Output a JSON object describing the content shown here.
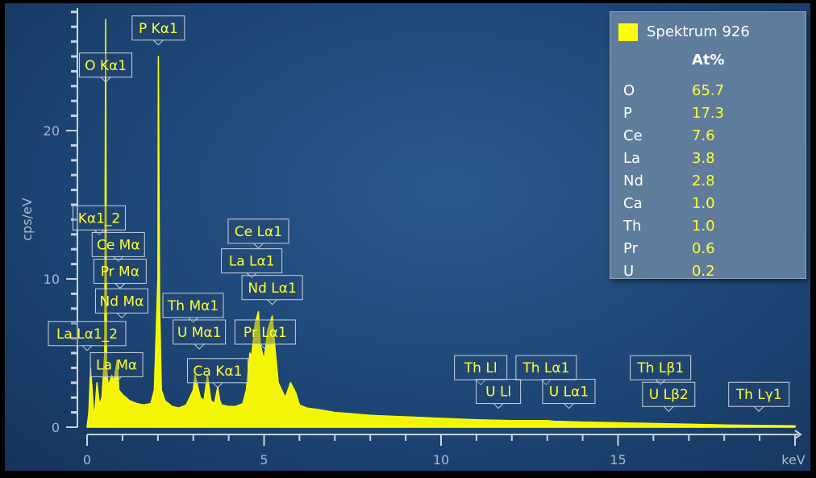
{
  "chart_data": {
    "type": "area",
    "x_range": [
      0,
      20
    ],
    "y_range": [
      0,
      28
    ],
    "y_axis_label": "cps/eV",
    "x_axis_unit": "keV",
    "x_tick_labels": [
      "0",
      "5",
      "10",
      "15"
    ],
    "y_tick_labels": [
      "0",
      "10",
      "20"
    ],
    "series_color": "#ffff00",
    "spectrum": {
      "x": [
        0,
        0.05,
        0.1,
        0.2,
        0.28,
        0.35,
        0.42,
        0.5,
        0.525,
        0.55,
        0.6,
        0.7,
        0.75,
        0.85,
        0.9,
        1.0,
        1.1,
        1.2,
        1.4,
        1.6,
        1.8,
        1.9,
        2.0,
        2.013,
        2.05,
        2.1,
        2.2,
        2.4,
        2.6,
        2.8,
        3.0,
        3.05,
        3.1,
        3.2,
        3.3,
        3.4,
        3.5,
        3.6,
        3.69,
        3.75,
        3.8,
        4.0,
        4.2,
        4.4,
        4.5,
        4.6,
        4.65,
        4.75,
        4.84,
        4.9,
        5.0,
        5.1,
        5.23,
        5.3,
        5.4,
        5.5,
        5.6,
        5.75,
        5.9,
        6.0,
        6.2,
        6.5,
        7.0,
        7.5,
        8.0,
        9.0,
        10.0,
        11.0,
        12.0,
        12.97,
        13.2,
        14.0,
        15.0,
        16.0,
        17.0,
        18.0,
        19.0,
        20.0
      ],
      "y": [
        0,
        1.0,
        4.0,
        0.5,
        3.0,
        1.5,
        2.0,
        5.0,
        27.5,
        4.0,
        2.8,
        3.5,
        3.0,
        4.5,
        2.5,
        2.2,
        2.0,
        1.8,
        1.6,
        1.5,
        1.6,
        2.5,
        10.0,
        25.0,
        8.0,
        2.5,
        1.8,
        1.4,
        1.3,
        1.5,
        2.5,
        3.5,
        3.0,
        2.0,
        1.8,
        3.5,
        1.8,
        1.6,
        2.7,
        1.8,
        1.5,
        1.4,
        1.4,
        1.6,
        2.5,
        5.0,
        4.8,
        7.0,
        7.8,
        5.5,
        4.5,
        6.5,
        7.5,
        5.5,
        3.0,
        2.5,
        2.0,
        3.0,
        2.3,
        1.5,
        1.3,
        1.2,
        1.0,
        0.9,
        0.8,
        0.7,
        0.6,
        0.5,
        0.45,
        0.45,
        0.4,
        0.35,
        0.3,
        0.25,
        0.2,
        0.15,
        0.12,
        0.1
      ]
    },
    "peak_labels": [
      {
        "text": "P Kα1",
        "x": 2.013,
        "y": 26.1
      },
      {
        "text": "O Kα1",
        "x": 0.525,
        "y": 23.6
      },
      {
        "text": "Kα1_2",
        "x": 0.341,
        "y": 13.3
      },
      {
        "text": "Ce Mα",
        "x": 0.883,
        "y": 11.5
      },
      {
        "text": "Pr Mα",
        "x": 0.93,
        "y": 9.7
      },
      {
        "text": "Nd Mα",
        "x": 0.978,
        "y": 7.7
      },
      {
        "text": "La Lα1_2",
        "x": 0.0,
        "y": 5.5
      },
      {
        "text": "La Mα",
        "x": 0.833,
        "y": 3.4
      },
      {
        "text": "Ce Lα1",
        "x": 4.84,
        "y": 12.4
      },
      {
        "text": "La Lα1",
        "x": 4.65,
        "y": 10.4
      },
      {
        "text": "Nd Lα1",
        "x": 5.23,
        "y": 8.6
      },
      {
        "text": "Pr Lα1",
        "x": 5.03,
        "y": 5.6
      },
      {
        "text": "Th Mα1",
        "x": 2.996,
        "y": 7.4
      },
      {
        "text": "U Mα1",
        "x": 3.17,
        "y": 5.6
      },
      {
        "text": "Ca Kα1",
        "x": 3.69,
        "y": 3.0
      },
      {
        "text": "Th Ll",
        "x": 11.12,
        "y": 3.2
      },
      {
        "text": "U Ll",
        "x": 11.62,
        "y": 1.6
      },
      {
        "text": "Th Lα1",
        "x": 12.97,
        "y": 3.2
      },
      {
        "text": "U Lα1",
        "x": 13.61,
        "y": 1.6
      },
      {
        "text": "Th Lβ1",
        "x": 16.2,
        "y": 3.2
      },
      {
        "text": "U Lβ2",
        "x": 16.43,
        "y": 1.4
      },
      {
        "text": "Th Lγ1",
        "x": 18.98,
        "y": 1.4
      }
    ]
  },
  "legend": {
    "title": "Spektrum 926",
    "column_header": "At%",
    "swatch_color": "#ffff00",
    "rows": [
      {
        "element": "O",
        "value": "65.7"
      },
      {
        "element": "P",
        "value": "17.3"
      },
      {
        "element": "Ce",
        "value": "7.6"
      },
      {
        "element": "La",
        "value": "3.8"
      },
      {
        "element": "Nd",
        "value": "2.8"
      },
      {
        "element": "Ca",
        "value": "1.0"
      },
      {
        "element": "Th",
        "value": "1.0"
      },
      {
        "element": "Pr",
        "value": "0.6"
      },
      {
        "element": "U",
        "value": "0.2"
      }
    ]
  }
}
